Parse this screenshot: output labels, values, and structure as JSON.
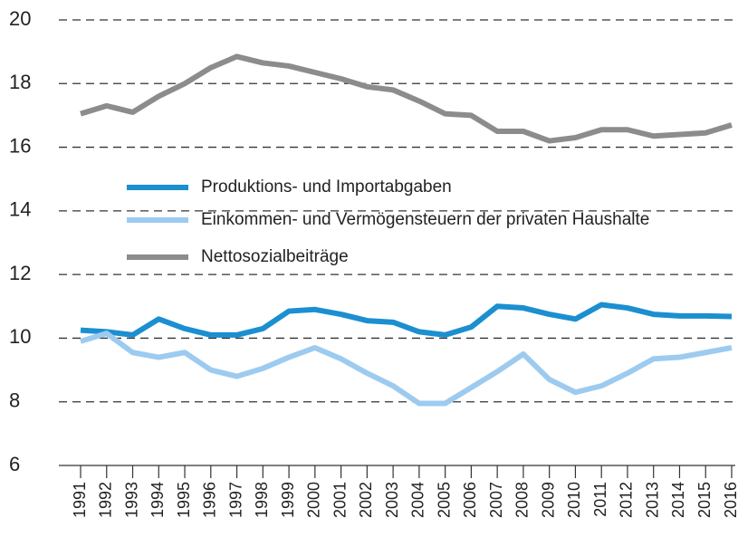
{
  "chart_data": {
    "type": "line",
    "categories": [
      "1991",
      "1992",
      "1993",
      "1994",
      "1995",
      "1996",
      "1997",
      "1998",
      "1999",
      "2000",
      "2001",
      "2002",
      "2003",
      "2004",
      "2005",
      "2006",
      "2007",
      "2008",
      "2009",
      "2010",
      "2011",
      "2012",
      "2013",
      "2014",
      "2015",
      "2016"
    ],
    "series": [
      {
        "name": "Produktions- und Importabgaben",
        "color": "#1b8fd0",
        "values": [
          10.25,
          10.2,
          10.1,
          10.6,
          10.3,
          10.1,
          10.1,
          10.3,
          10.85,
          10.9,
          10.75,
          10.55,
          10.5,
          10.2,
          10.1,
          10.35,
          11.0,
          10.95,
          10.75,
          10.6,
          11.05,
          10.95,
          10.75,
          10.7,
          10.7,
          10.68
        ]
      },
      {
        "name": "Einkommen- und Vermögensteuern der privaten Haushalte",
        "color": "#9dcbf0",
        "values": [
          9.9,
          10.15,
          9.55,
          9.4,
          9.55,
          9.0,
          8.8,
          9.05,
          9.4,
          9.7,
          9.35,
          8.9,
          8.5,
          7.95,
          7.95,
          8.45,
          8.95,
          9.5,
          8.7,
          8.3,
          8.5,
          8.9,
          9.35,
          9.4,
          9.55,
          9.7
        ]
      },
      {
        "name": "Nettosozialbeiträge",
        "color": "#8c8c8c",
        "values": [
          17.05,
          17.3,
          17.1,
          17.6,
          18.0,
          18.5,
          18.85,
          18.65,
          18.55,
          18.35,
          18.15,
          17.9,
          17.8,
          17.45,
          17.05,
          17.0,
          16.5,
          16.5,
          16.2,
          16.3,
          16.55,
          16.55,
          16.35,
          16.4,
          16.45,
          16.7
        ]
      }
    ],
    "ylim": [
      6,
      20
    ],
    "yticks": [
      6,
      8,
      10,
      12,
      14,
      16,
      18,
      20
    ],
    "grid": true
  }
}
